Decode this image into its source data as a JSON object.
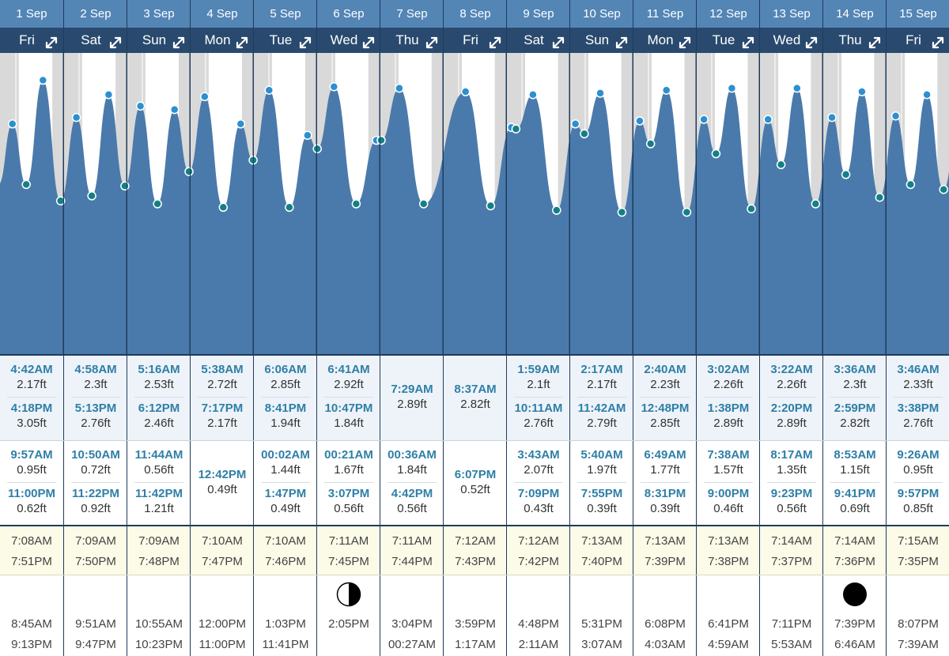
{
  "colors": {
    "tide_fill": "#4a7aab",
    "header_date": "#5385b5",
    "header_day": "#294a6e",
    "high_marker": "#2c8fd0",
    "low_marker": "#138088",
    "tide_time_text": "#2e7fa6",
    "night_shade": "#d9d9d9"
  },
  "days": [
    {
      "date": "1 Sep",
      "day": "Fri",
      "highs": [
        {
          "time": "4:42AM",
          "height": "2.17ft"
        },
        {
          "time": "4:18PM",
          "height": "3.05ft"
        }
      ],
      "lows": [
        {
          "time": "9:57AM",
          "height": "0.95ft"
        },
        {
          "time": "11:00PM",
          "height": "0.62ft"
        }
      ],
      "sunrise": "7:08AM",
      "sunset": "7:51PM",
      "moon_phase": "",
      "moonrise": "8:45AM",
      "moonset": "9:13PM"
    },
    {
      "date": "2 Sep",
      "day": "Sat",
      "highs": [
        {
          "time": "4:58AM",
          "height": "2.3ft"
        },
        {
          "time": "5:13PM",
          "height": "2.76ft"
        }
      ],
      "lows": [
        {
          "time": "10:50AM",
          "height": "0.72ft"
        },
        {
          "time": "11:22PM",
          "height": "0.92ft"
        }
      ],
      "sunrise": "7:09AM",
      "sunset": "7:50PM",
      "moon_phase": "",
      "moonrise": "9:51AM",
      "moonset": "9:47PM"
    },
    {
      "date": "3 Sep",
      "day": "Sun",
      "highs": [
        {
          "time": "5:16AM",
          "height": "2.53ft"
        },
        {
          "time": "6:12PM",
          "height": "2.46ft"
        }
      ],
      "lows": [
        {
          "time": "11:44AM",
          "height": "0.56ft"
        },
        {
          "time": "11:42PM",
          "height": "1.21ft"
        }
      ],
      "sunrise": "7:09AM",
      "sunset": "7:48PM",
      "moon_phase": "",
      "moonrise": "10:55AM",
      "moonset": "10:23PM"
    },
    {
      "date": "4 Sep",
      "day": "Mon",
      "highs": [
        {
          "time": "5:38AM",
          "height": "2.72ft"
        },
        {
          "time": "7:17PM",
          "height": "2.17ft"
        }
      ],
      "lows": [
        {
          "time": "12:42PM",
          "height": "0.49ft"
        }
      ],
      "sunrise": "7:10AM",
      "sunset": "7:47PM",
      "moon_phase": "",
      "moonrise": "12:00PM",
      "moonset": "11:00PM"
    },
    {
      "date": "5 Sep",
      "day": "Tue",
      "highs": [
        {
          "time": "6:06AM",
          "height": "2.85ft"
        },
        {
          "time": "8:41PM",
          "height": "1.94ft"
        }
      ],
      "lows": [
        {
          "time": "00:02AM",
          "height": "1.44ft"
        },
        {
          "time": "1:47PM",
          "height": "0.49ft"
        }
      ],
      "sunrise": "7:10AM",
      "sunset": "7:46PM",
      "moon_phase": "",
      "moonrise": "1:03PM",
      "moonset": "11:41PM"
    },
    {
      "date": "6 Sep",
      "day": "Wed",
      "highs": [
        {
          "time": "6:41AM",
          "height": "2.92ft"
        },
        {
          "time": "10:47PM",
          "height": "1.84ft"
        }
      ],
      "lows": [
        {
          "time": "00:21AM",
          "height": "1.67ft"
        },
        {
          "time": "3:07PM",
          "height": "0.56ft"
        }
      ],
      "sunrise": "7:11AM",
      "sunset": "7:45PM",
      "moon_phase": "first-quarter",
      "moonrise": "2:05PM",
      "moonset": ""
    },
    {
      "date": "7 Sep",
      "day": "Thu",
      "highs": [
        {
          "time": "7:29AM",
          "height": "2.89ft"
        }
      ],
      "lows": [
        {
          "time": "00:36AM",
          "height": "1.84ft"
        },
        {
          "time": "4:42PM",
          "height": "0.56ft"
        }
      ],
      "sunrise": "7:11AM",
      "sunset": "7:44PM",
      "moon_phase": "",
      "moonrise": "3:04PM",
      "moonset": "00:27AM"
    },
    {
      "date": "8 Sep",
      "day": "Fri",
      "highs": [
        {
          "time": "8:37AM",
          "height": "2.82ft"
        }
      ],
      "lows": [
        {
          "time": "6:07PM",
          "height": "0.52ft"
        }
      ],
      "sunrise": "7:12AM",
      "sunset": "7:43PM",
      "moon_phase": "",
      "moonrise": "3:59PM",
      "moonset": "1:17AM"
    },
    {
      "date": "9 Sep",
      "day": "Sat",
      "highs": [
        {
          "time": "1:59AM",
          "height": "2.1ft"
        },
        {
          "time": "10:11AM",
          "height": "2.76ft"
        }
      ],
      "lows": [
        {
          "time": "3:43AM",
          "height": "2.07ft"
        },
        {
          "time": "7:09PM",
          "height": "0.43ft"
        }
      ],
      "sunrise": "7:12AM",
      "sunset": "7:42PM",
      "moon_phase": "",
      "moonrise": "4:48PM",
      "moonset": "2:11AM"
    },
    {
      "date": "10 Sep",
      "day": "Sun",
      "highs": [
        {
          "time": "2:17AM",
          "height": "2.17ft"
        },
        {
          "time": "11:42AM",
          "height": "2.79ft"
        }
      ],
      "lows": [
        {
          "time": "5:40AM",
          "height": "1.97ft"
        },
        {
          "time": "7:55PM",
          "height": "0.39ft"
        }
      ],
      "sunrise": "7:13AM",
      "sunset": "7:40PM",
      "moon_phase": "",
      "moonrise": "5:31PM",
      "moonset": "3:07AM"
    },
    {
      "date": "11 Sep",
      "day": "Mon",
      "highs": [
        {
          "time": "2:40AM",
          "height": "2.23ft"
        },
        {
          "time": "12:48PM",
          "height": "2.85ft"
        }
      ],
      "lows": [
        {
          "time": "6:49AM",
          "height": "1.77ft"
        },
        {
          "time": "8:31PM",
          "height": "0.39ft"
        }
      ],
      "sunrise": "7:13AM",
      "sunset": "7:39PM",
      "moon_phase": "",
      "moonrise": "6:08PM",
      "moonset": "4:03AM"
    },
    {
      "date": "12 Sep",
      "day": "Tue",
      "highs": [
        {
          "time": "3:02AM",
          "height": "2.26ft"
        },
        {
          "time": "1:38PM",
          "height": "2.89ft"
        }
      ],
      "lows": [
        {
          "time": "7:38AM",
          "height": "1.57ft"
        },
        {
          "time": "9:00PM",
          "height": "0.46ft"
        }
      ],
      "sunrise": "7:13AM",
      "sunset": "7:38PM",
      "moon_phase": "",
      "moonrise": "6:41PM",
      "moonset": "4:59AM"
    },
    {
      "date": "13 Sep",
      "day": "Wed",
      "highs": [
        {
          "time": "3:22AM",
          "height": "2.26ft"
        },
        {
          "time": "2:20PM",
          "height": "2.89ft"
        }
      ],
      "lows": [
        {
          "time": "8:17AM",
          "height": "1.35ft"
        },
        {
          "time": "9:23PM",
          "height": "0.56ft"
        }
      ],
      "sunrise": "7:14AM",
      "sunset": "7:37PM",
      "moon_phase": "",
      "moonrise": "7:11PM",
      "moonset": "5:53AM"
    },
    {
      "date": "14 Sep",
      "day": "Thu",
      "highs": [
        {
          "time": "3:36AM",
          "height": "2.3ft"
        },
        {
          "time": "2:59PM",
          "height": "2.82ft"
        }
      ],
      "lows": [
        {
          "time": "8:53AM",
          "height": "1.15ft"
        },
        {
          "time": "9:41PM",
          "height": "0.69ft"
        }
      ],
      "sunrise": "7:14AM",
      "sunset": "7:36PM",
      "moon_phase": "new-moon",
      "moonrise": "7:39PM",
      "moonset": "6:46AM"
    },
    {
      "date": "15 Sep",
      "day": "Fri",
      "highs": [
        {
          "time": "3:46AM",
          "height": "2.33ft"
        },
        {
          "time": "3:38PM",
          "height": "2.76ft"
        }
      ],
      "lows": [
        {
          "time": "9:26AM",
          "height": "0.95ft"
        },
        {
          "time": "9:57PM",
          "height": "0.85ft"
        }
      ],
      "sunrise": "7:15AM",
      "sunset": "7:35PM",
      "moon_phase": "",
      "moonrise": "8:07PM",
      "moonset": "7:39AM"
    }
  ],
  "chart_data": {
    "type": "area",
    "xlabel": "",
    "ylabel": "",
    "ylim": [
      -2.5,
      3.6
    ],
    "grid": true,
    "series": [
      {
        "points": [
          {
            "day": 0,
            "time": "4:42AM",
            "height": 2.17,
            "kind": "high"
          },
          {
            "day": 0,
            "time": "9:57AM",
            "height": 0.95,
            "kind": "low"
          },
          {
            "day": 0,
            "time": "4:18PM",
            "height": 3.05,
            "kind": "high"
          },
          {
            "day": 0,
            "time": "11:00PM",
            "height": 0.62,
            "kind": "low"
          },
          {
            "day": 1,
            "time": "4:58AM",
            "height": 2.3,
            "kind": "high"
          },
          {
            "day": 1,
            "time": "10:50AM",
            "height": 0.72,
            "kind": "low"
          },
          {
            "day": 1,
            "time": "5:13PM",
            "height": 2.76,
            "kind": "high"
          },
          {
            "day": 1,
            "time": "11:22PM",
            "height": 0.92,
            "kind": "low"
          },
          {
            "day": 2,
            "time": "5:16AM",
            "height": 2.53,
            "kind": "high"
          },
          {
            "day": 2,
            "time": "11:44AM",
            "height": 0.56,
            "kind": "low"
          },
          {
            "day": 2,
            "time": "6:12PM",
            "height": 2.46,
            "kind": "high"
          },
          {
            "day": 2,
            "time": "11:42PM",
            "height": 1.21,
            "kind": "low"
          },
          {
            "day": 3,
            "time": "5:38AM",
            "height": 2.72,
            "kind": "high"
          },
          {
            "day": 3,
            "time": "12:42PM",
            "height": 0.49,
            "kind": "low"
          },
          {
            "day": 3,
            "time": "7:17PM",
            "height": 2.17,
            "kind": "high"
          },
          {
            "day": 4,
            "time": "00:02AM",
            "height": 1.44,
            "kind": "low"
          },
          {
            "day": 4,
            "time": "6:06AM",
            "height": 2.85,
            "kind": "high"
          },
          {
            "day": 4,
            "time": "1:47PM",
            "height": 0.49,
            "kind": "low"
          },
          {
            "day": 4,
            "time": "8:41PM",
            "height": 1.94,
            "kind": "high"
          },
          {
            "day": 5,
            "time": "00:21AM",
            "height": 1.67,
            "kind": "low"
          },
          {
            "day": 5,
            "time": "6:41AM",
            "height": 2.92,
            "kind": "high"
          },
          {
            "day": 5,
            "time": "3:07PM",
            "height": 0.56,
            "kind": "low"
          },
          {
            "day": 5,
            "time": "10:47PM",
            "height": 1.84,
            "kind": "high"
          },
          {
            "day": 6,
            "time": "00:36AM",
            "height": 1.84,
            "kind": "low"
          },
          {
            "day": 6,
            "time": "7:29AM",
            "height": 2.89,
            "kind": "high"
          },
          {
            "day": 6,
            "time": "4:42PM",
            "height": 0.56,
            "kind": "low"
          },
          {
            "day": 7,
            "time": "8:37AM",
            "height": 2.82,
            "kind": "high"
          },
          {
            "day": 7,
            "time": "6:07PM",
            "height": 0.52,
            "kind": "low"
          },
          {
            "day": 8,
            "time": "1:59AM",
            "height": 2.1,
            "kind": "high"
          },
          {
            "day": 8,
            "time": "3:43AM",
            "height": 2.07,
            "kind": "low"
          },
          {
            "day": 8,
            "time": "10:11AM",
            "height": 2.76,
            "kind": "high"
          },
          {
            "day": 8,
            "time": "7:09PM",
            "height": 0.43,
            "kind": "low"
          },
          {
            "day": 9,
            "time": "2:17AM",
            "height": 2.17,
            "kind": "high"
          },
          {
            "day": 9,
            "time": "5:40AM",
            "height": 1.97,
            "kind": "low"
          },
          {
            "day": 9,
            "time": "11:42AM",
            "height": 2.79,
            "kind": "high"
          },
          {
            "day": 9,
            "time": "7:55PM",
            "height": 0.39,
            "kind": "low"
          },
          {
            "day": 10,
            "time": "2:40AM",
            "height": 2.23,
            "kind": "high"
          },
          {
            "day": 10,
            "time": "6:49AM",
            "height": 1.77,
            "kind": "low"
          },
          {
            "day": 10,
            "time": "12:48PM",
            "height": 2.85,
            "kind": "high"
          },
          {
            "day": 10,
            "time": "8:31PM",
            "height": 0.39,
            "kind": "low"
          },
          {
            "day": 11,
            "time": "3:02AM",
            "height": 2.26,
            "kind": "high"
          },
          {
            "day": 11,
            "time": "7:38AM",
            "height": 1.57,
            "kind": "low"
          },
          {
            "day": 11,
            "time": "1:38PM",
            "height": 2.89,
            "kind": "high"
          },
          {
            "day": 11,
            "time": "9:00PM",
            "height": 0.46,
            "kind": "low"
          },
          {
            "day": 12,
            "time": "3:22AM",
            "height": 2.26,
            "kind": "high"
          },
          {
            "day": 12,
            "time": "8:17AM",
            "height": 1.35,
            "kind": "low"
          },
          {
            "day": 12,
            "time": "2:20PM",
            "height": 2.89,
            "kind": "high"
          },
          {
            "day": 12,
            "time": "9:23PM",
            "height": 0.56,
            "kind": "low"
          },
          {
            "day": 13,
            "time": "3:36AM",
            "height": 2.3,
            "kind": "high"
          },
          {
            "day": 13,
            "time": "8:53AM",
            "height": 1.15,
            "kind": "low"
          },
          {
            "day": 13,
            "time": "2:59PM",
            "height": 2.82,
            "kind": "high"
          },
          {
            "day": 13,
            "time": "9:41PM",
            "height": 0.69,
            "kind": "low"
          },
          {
            "day": 14,
            "time": "3:46AM",
            "height": 2.33,
            "kind": "high"
          },
          {
            "day": 14,
            "time": "9:26AM",
            "height": 0.95,
            "kind": "low"
          },
          {
            "day": 14,
            "time": "3:38PM",
            "height": 2.76,
            "kind": "high"
          },
          {
            "day": 14,
            "time": "9:57PM",
            "height": 0.85,
            "kind": "low"
          }
        ]
      }
    ]
  }
}
